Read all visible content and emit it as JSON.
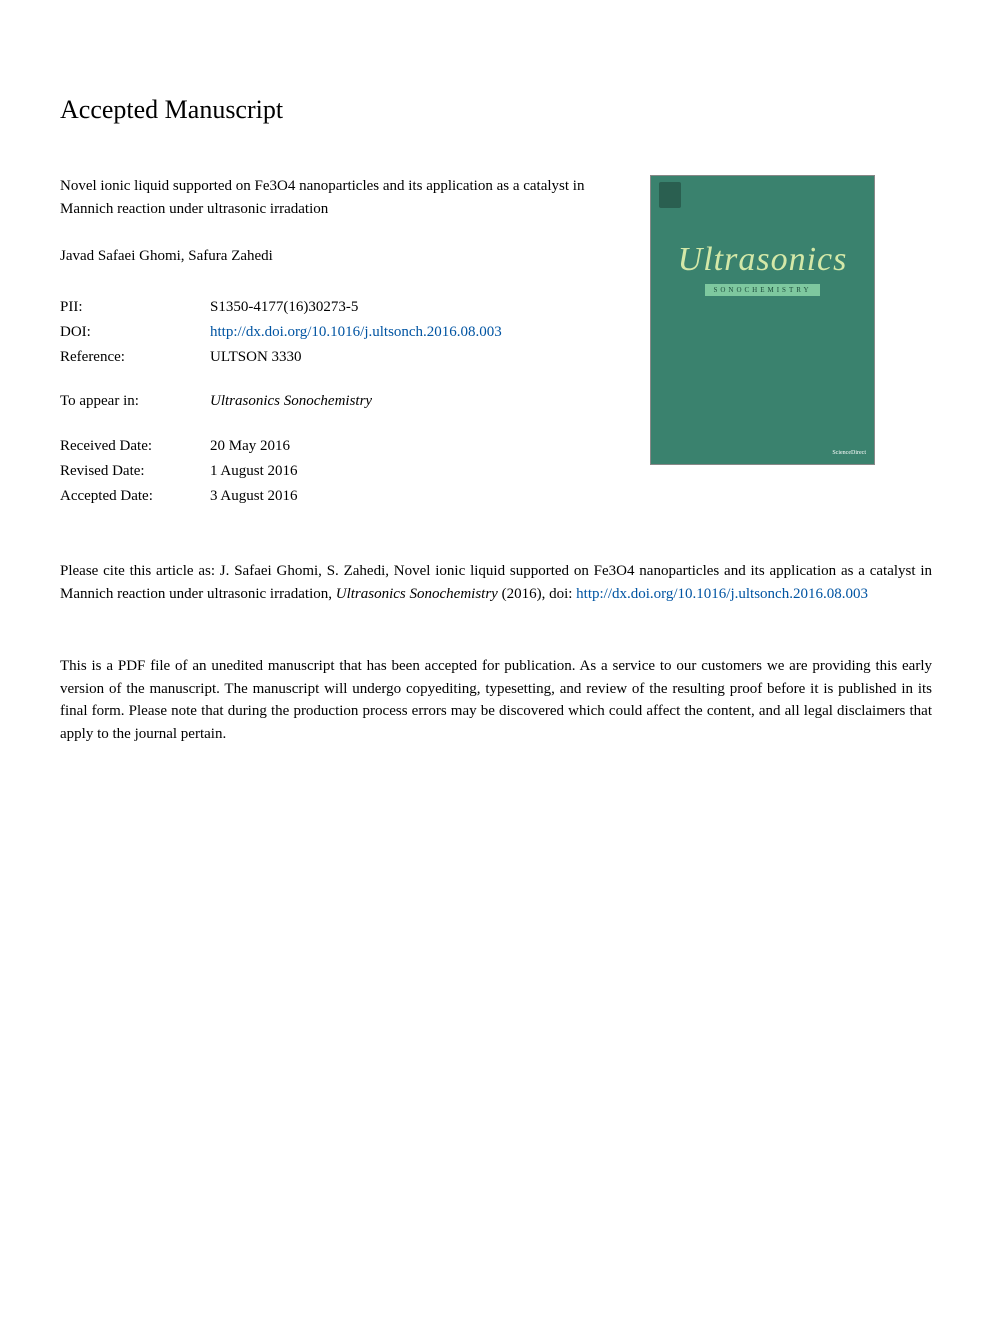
{
  "heading": "Accepted Manuscript",
  "article_title": "Novel ionic liquid supported on Fe3O4 nanoparticles and its application as a catalyst in Mannich reaction under ultrasonic irradation",
  "authors": "Javad Safaei Ghomi, Safura Zahedi",
  "metadata": {
    "pii": {
      "label": "PII:",
      "value": "S1350-4177(16)30273-5"
    },
    "doi": {
      "label": "DOI:",
      "value": "http://dx.doi.org/10.1016/j.ultsonch.2016.08.003"
    },
    "reference": {
      "label": "Reference:",
      "value": "ULTSON 3330"
    },
    "to_appear_in": {
      "label": "To appear in:",
      "value": "Ultrasonics Sonochemistry"
    },
    "received_date": {
      "label": "Received Date:",
      "value": "20 May 2016"
    },
    "revised_date": {
      "label": "Revised Date:",
      "value": "1 August 2016"
    },
    "accepted_date": {
      "label": "Accepted Date:",
      "value": "3 August 2016"
    }
  },
  "citation": {
    "prefix": "Please cite this article as: J. Safaei Ghomi, S. Zahedi, Novel ionic liquid supported on Fe3O4 nanoparticles and its application as a catalyst in Mannich reaction under ultrasonic irradation, ",
    "journal": "Ultrasonics Sonochemistry",
    "year": " (2016), doi: ",
    "link": "http://dx.doi.org/10.1016/j.ultsonch.2016.08.003"
  },
  "disclaimer": "This is a PDF file of an unedited manuscript that has been accepted for publication. As a service to our customers we are providing this early version of the manuscript. The manuscript will undergo copyediting, typesetting, and review of the resulting proof before it is published in its final form. Please note that during the production process errors may be discovered which could affect the content, and all legal disclaimers that apply to the journal pertain.",
  "journal_cover": {
    "title": "Ultrasonics",
    "subtitle": "SONOCHEMISTRY",
    "footer_right": "ScienceDirect",
    "colors": {
      "background": "#3a826e",
      "title_color": "#d4e8a8",
      "subtitle_bg": "#7ec89f",
      "subtitle_color": "#1a4a3a"
    }
  },
  "colors": {
    "link": "#0054a2",
    "text": "#000000",
    "background": "#ffffff"
  }
}
